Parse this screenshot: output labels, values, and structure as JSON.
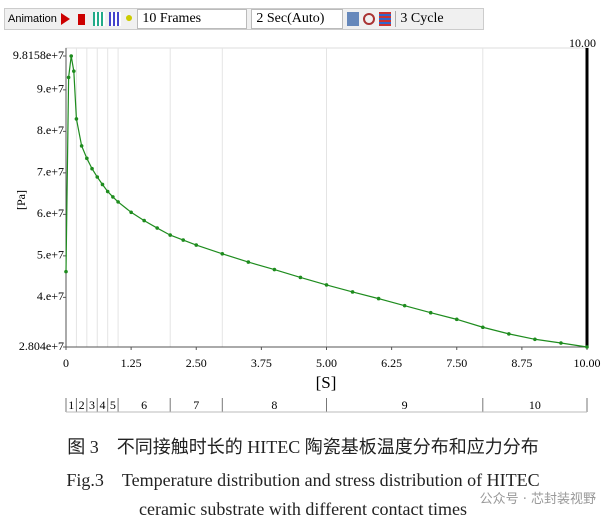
{
  "toolbar": {
    "animation": "Animation",
    "frames": "10 Frames",
    "speed": "2 Sec(Auto)",
    "cycle": "3 Cycle"
  },
  "chart_data": {
    "type": "line",
    "x_label": "[S]",
    "y_label": "[Pa]",
    "time_marker": "10.00",
    "color": "#1e8c1e",
    "x": [
      0,
      0.05,
      0.1,
      0.15,
      0.2,
      0.3,
      0.4,
      0.5,
      0.6,
      0.7,
      0.8,
      0.9,
      1.0,
      1.25,
      1.5,
      1.75,
      2.0,
      2.25,
      2.5,
      3.0,
      3.5,
      4.0,
      4.5,
      5.0,
      5.5,
      6.0,
      6.5,
      7.0,
      7.5,
      8.0,
      8.5,
      9.0,
      9.5,
      10
    ],
    "values": [
      46200000,
      93000000,
      98158000,
      94500000,
      83000000,
      76500000,
      73500000,
      71000000,
      69000000,
      67200000,
      65500000,
      64200000,
      63000000,
      60500000,
      58500000,
      56700000,
      55000000,
      53800000,
      52600000,
      50500000,
      48500000,
      46700000,
      44800000,
      43000000,
      41300000,
      39700000,
      38000000,
      36300000,
      34700000,
      32800000,
      31200000,
      29900000,
      29000000,
      28040000
    ],
    "xlim": [
      0,
      10
    ],
    "ylim": [
      28040000,
      98158000
    ],
    "xticks": [
      0,
      1.25,
      {
        "value": 2.5,
        "label": "2.50"
      },
      3.75,
      {
        "value": 5,
        "label": "5.00"
      },
      6.25,
      {
        "value": 7.5,
        "label": "7.50"
      },
      8.75,
      {
        "value": 10,
        "label": "10.00"
      }
    ],
    "yticks": [
      {
        "value": 98158000,
        "label": "9.8158e+7"
      },
      {
        "value": 90000000,
        "label": "9.e+7"
      },
      {
        "value": 80000000,
        "label": "8.e+7"
      },
      {
        "value": 70000000,
        "label": "7.e+7"
      },
      {
        "value": 60000000,
        "label": "6.e+7"
      },
      {
        "value": 50000000,
        "label": "5.e+7"
      },
      {
        "value": 40000000,
        "label": "4.e+7"
      },
      {
        "value": 28040000,
        "label": "2.804e+7"
      }
    ],
    "frames": [
      "1",
      "2",
      "3",
      "4",
      "5",
      "6",
      "7",
      "8",
      "9",
      "10"
    ],
    "frame_bounds": [
      0,
      0.2,
      0.4,
      0.6,
      0.8,
      1,
      2,
      3,
      5,
      8,
      10
    ]
  },
  "caption": {
    "cn": "图 3　不同接触时长的 HITEC 陶瓷基板温度分布和应力分布",
    "en1": "Fig.3　Temperature distribution and stress distribution of HITEC",
    "en2": "ceramic substrate with different contact times"
  },
  "watermark": "公众号 · 芯封装视野"
}
